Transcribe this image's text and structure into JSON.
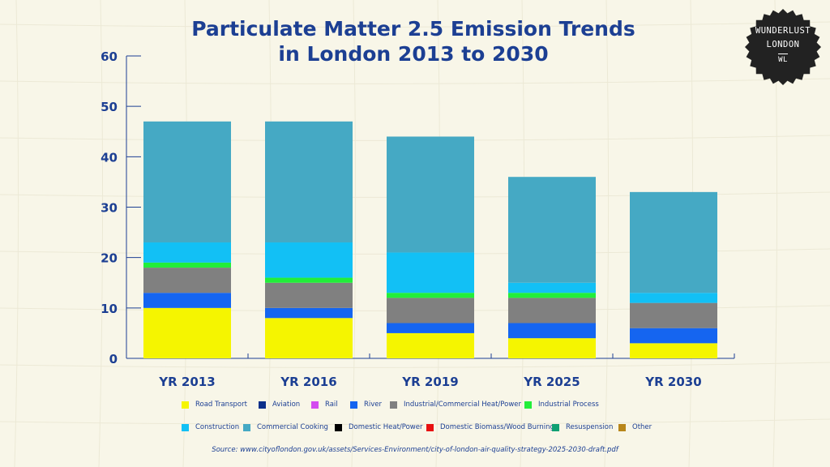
{
  "chart_data": {
    "type": "bar",
    "stacked": true,
    "title_lines": [
      "Particulate Matter 2.5 Emission Trends",
      "in London 2013 to 2030"
    ],
    "categories": [
      "YR 2013",
      "YR 2016",
      "YR 2019",
      "YR 2025",
      "YR 2030"
    ],
    "ylim": [
      0,
      60
    ],
    "yticks": [
      "0",
      "10",
      "20",
      "30",
      "40",
      "50",
      "60"
    ],
    "ytick_values": [
      0,
      10,
      20,
      30,
      40,
      50,
      60
    ],
    "xlabel": "",
    "ylabel": "",
    "series": [
      {
        "name": "Road Transport",
        "color": "#f5f500",
        "values": [
          10,
          8,
          5,
          4,
          3
        ]
      },
      {
        "name": "Aviation",
        "color": "#0b2f8a",
        "values": [
          0,
          0,
          0,
          0,
          0
        ]
      },
      {
        "name": "Rail",
        "color": "#d44cf0",
        "values": [
          0,
          0,
          0,
          0,
          0
        ]
      },
      {
        "name": "River",
        "color": "#1565f0",
        "values": [
          3,
          2,
          2,
          3,
          3
        ]
      },
      {
        "name": "Industrial/Commercial Heat/Power",
        "color": "#808080",
        "values": [
          5,
          5,
          5,
          5,
          5
        ]
      },
      {
        "name": "Industrial Process",
        "color": "#22ee3a",
        "values": [
          1,
          1,
          1,
          1,
          0
        ]
      },
      {
        "name": "Construction",
        "color": "#12c0f5",
        "values": [
          4,
          7,
          8,
          2,
          2
        ]
      },
      {
        "name": "Commercial Cooking",
        "color": "#45a9c4",
        "values": [
          24,
          24,
          23,
          21,
          20
        ]
      },
      {
        "name": "Domestic Heat/Power",
        "color": "#000000",
        "values": [
          0,
          0,
          0,
          0,
          0
        ]
      },
      {
        "name": "Domestic Biomass/Wood Burning",
        "color": "#e81010",
        "values": [
          0,
          0,
          0,
          0,
          0
        ]
      },
      {
        "name": "Resuspension",
        "color": "#0fa072",
        "values": [
          0,
          0,
          0,
          0,
          0
        ]
      },
      {
        "name": "Other",
        "color": "#b8861a",
        "values": [
          0,
          0,
          0,
          0,
          0
        ]
      }
    ],
    "legend_placement": "bottom",
    "source": "Source: www.cityoflondon.gov.uk/assets/Services-Environment/city-of-london-air-quality-strategy-2025-2030-draft.pdf"
  },
  "badge": {
    "line1": "WUNDERLUST",
    "line2": "LONDON",
    "line3": "WL"
  },
  "colors": {
    "background": "#f8f6e8",
    "text": "#1c3f93",
    "badge": "#222222"
  }
}
